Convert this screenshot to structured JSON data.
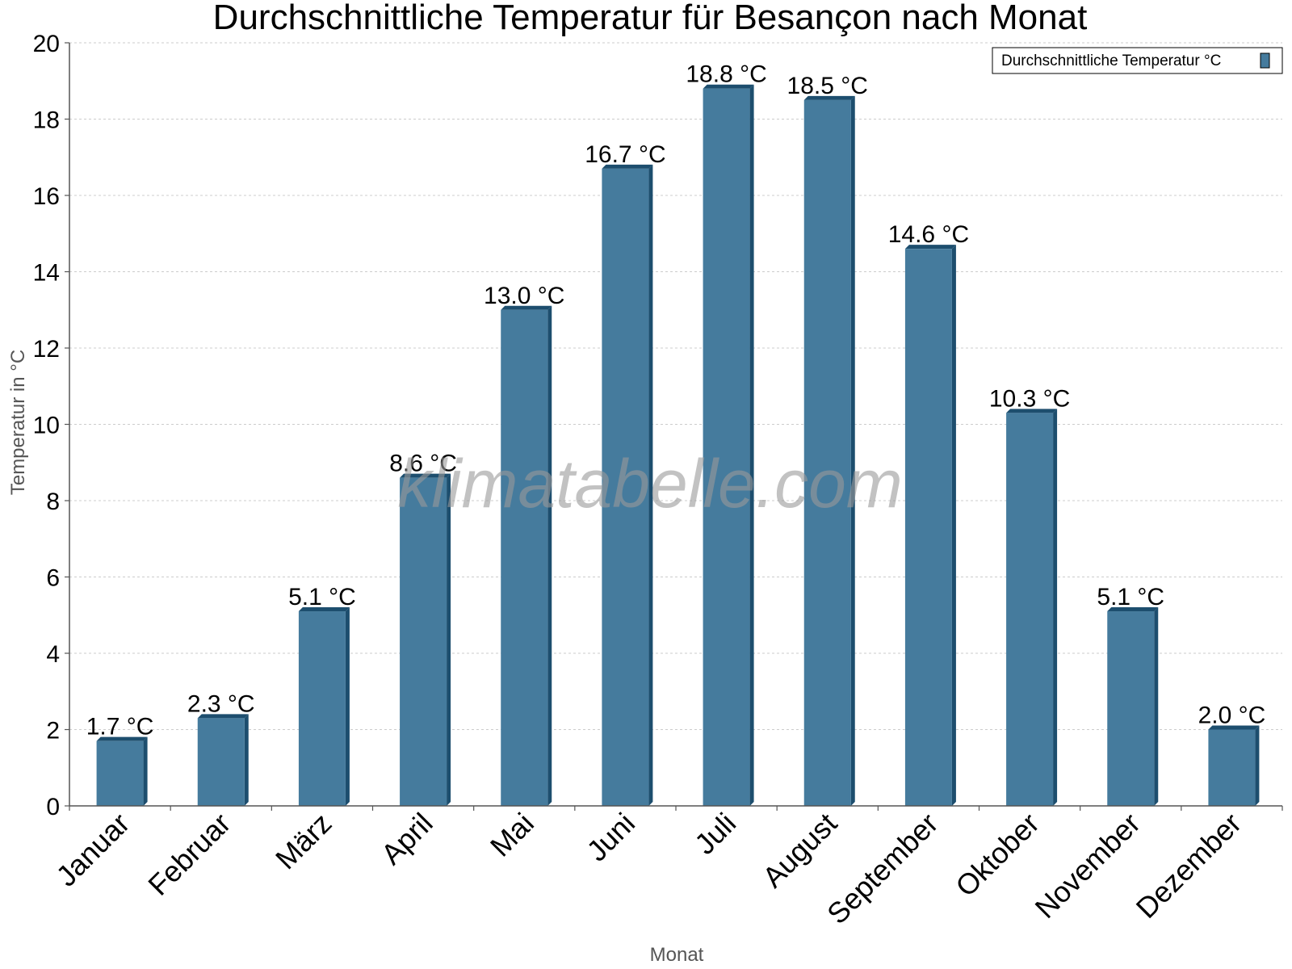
{
  "chart_data": {
    "type": "bar",
    "title": "Durchschnittliche Temperatur für Besançon nach Monat",
    "xlabel": "Monat",
    "ylabel": "Temperatur in °C",
    "categories": [
      "Januar",
      "Februar",
      "März",
      "April",
      "Mai",
      "Juni",
      "Juli",
      "August",
      "September",
      "Oktober",
      "November",
      "Dezember"
    ],
    "series": [
      {
        "name": "Durchschnittliche Temperatur °C",
        "values": [
          1.7,
          2.3,
          5.1,
          8.6,
          13.0,
          16.7,
          18.8,
          18.5,
          14.6,
          10.3,
          5.1,
          2.0
        ],
        "labels": [
          "1.7 °C",
          "2.3 °C",
          "5.1 °C",
          "8.6 °C",
          "13.0 °C",
          "16.7 °C",
          "18.8 °C",
          "18.5 °C",
          "14.6 °C",
          "10.3 °C",
          "5.1 °C",
          "2.0 °C"
        ]
      }
    ],
    "ylim": [
      0,
      20
    ],
    "yticks": [
      0,
      2,
      4,
      6,
      8,
      10,
      12,
      14,
      16,
      18,
      20
    ],
    "grid": true,
    "legend_position": "top-right",
    "colors": {
      "bar": "#457b9d",
      "bar_shade": "#1d4e6e",
      "grid": "#cccccc",
      "axis": "#555555"
    },
    "watermark": "klimatabelle.com"
  }
}
